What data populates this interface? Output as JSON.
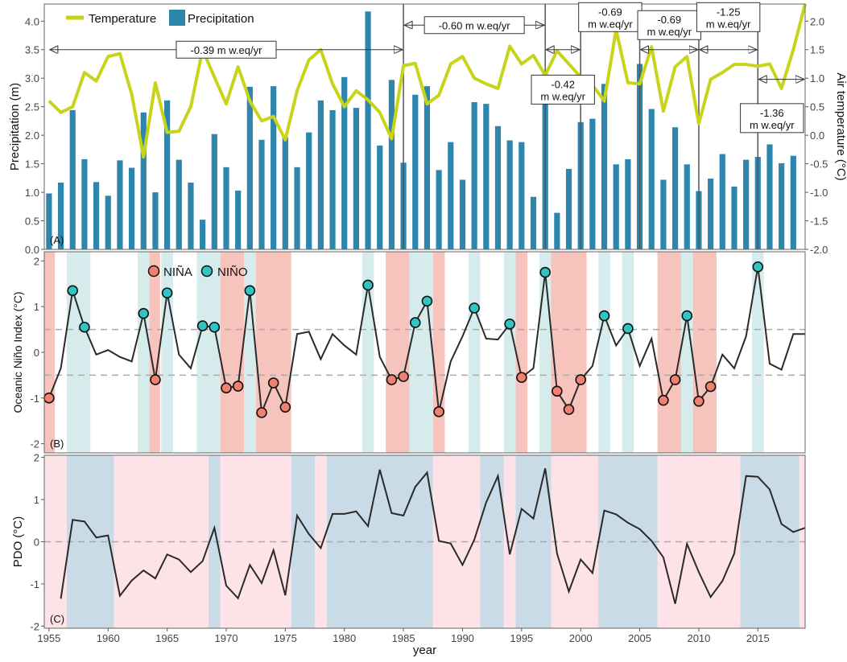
{
  "colors": {
    "bar": "#2f86ad",
    "temperature": "#c8d41a",
    "nina": "#f08070",
    "nino": "#30c4c4",
    "nina_band": "#f7c3bd",
    "nino_band": "#d6ecec",
    "pdo_warm": "#c9dbe6",
    "pdo_cool": "#fde3e7",
    "line": "#2a2a2a",
    "dash": "#aaaaaa",
    "axis": "#555555"
  },
  "chart_data": [
    {
      "id": "A",
      "type": "bar",
      "panel_label": "(A)",
      "ylabel": "Precipitation (m)",
      "y2label": "Air temperature (°C)",
      "ylim": [
        0,
        4.3
      ],
      "y2lim": [
        -2.0,
        2.3
      ],
      "yticks": [
        "0.0",
        "0.5",
        "1.0",
        "1.5",
        "2.0",
        "2.5",
        "3.0",
        "3.5",
        "4.0"
      ],
      "y2ticks": [
        "-2.0",
        "-1.5",
        "-1.0",
        "-0.5",
        "0.0",
        "0.5",
        "1.0",
        "1.5",
        "2.0"
      ],
      "legend": {
        "position": "top-left",
        "temperature_label": "Temperature",
        "precipitation_label": "Precipitation"
      },
      "precip_years": [
        1955,
        1956,
        1957,
        1958,
        1959,
        1960,
        1961,
        1962,
        1963,
        1964,
        1965,
        1966,
        1967,
        1968,
        1969,
        1970,
        1971,
        1972,
        1973,
        1974,
        1975,
        1976,
        1977,
        1978,
        1979,
        1980,
        1981,
        1982,
        1983,
        1984,
        1985,
        1986,
        1987,
        1988,
        1989,
        1990,
        1991,
        1992,
        1993,
        1994,
        1995,
        1996,
        1997,
        1998,
        1999,
        2000,
        2001,
        2002,
        2003,
        2004,
        2005,
        2006,
        2007,
        2008,
        2009,
        2010,
        2011,
        2012,
        2013,
        2014,
        2015,
        2016,
        2017,
        2018
      ],
      "precipitation": [
        0.98,
        1.17,
        2.44,
        1.58,
        1.18,
        0.94,
        1.56,
        1.43,
        2.4,
        1.0,
        2.61,
        1.57,
        1.17,
        0.52,
        2.02,
        1.44,
        1.03,
        2.85,
        1.92,
        2.86,
        1.96,
        1.44,
        2.05,
        2.61,
        2.44,
        3.02,
        2.48,
        4.17,
        1.82,
        2.97,
        1.52,
        2.71,
        2.86,
        1.39,
        1.88,
        1.22,
        2.58,
        2.55,
        2.16,
        1.91,
        1.88,
        0.92,
        3.07,
        0.64,
        1.41,
        2.23,
        2.29,
        2.9,
        1.49,
        1.58,
        3.25,
        2.46,
        1.22,
        2.14,
        1.49,
        1.02,
        1.24,
        1.67,
        1.1,
        1.57,
        1.62,
        1.84,
        1.51,
        1.64
      ],
      "temp_years": [
        1955,
        1956,
        1957,
        1958,
        1959,
        1960,
        1961,
        1962,
        1963,
        1964,
        1965,
        1966,
        1967,
        1968,
        1969,
        1970,
        1971,
        1972,
        1973,
        1974,
        1975,
        1976,
        1977,
        1978,
        1979,
        1980,
        1981,
        1982,
        1983,
        1984,
        1985,
        1986,
        1987,
        1988,
        1989,
        1990,
        1991,
        1992,
        1993,
        1994,
        1995,
        1996,
        1997,
        1998,
        1999,
        2000,
        2001,
        2002,
        2003,
        2004,
        2005,
        2006,
        2007,
        2008,
        2009,
        2010,
        2011,
        2012,
        2013,
        2014,
        2015,
        2016,
        2017,
        2018,
        2019
      ],
      "temperature": [
        0.6,
        0.4,
        0.5,
        1.1,
        0.95,
        1.38,
        1.43,
        0.72,
        -0.38,
        0.92,
        0.05,
        0.07,
        0.5,
        1.5,
        1.02,
        0.55,
        1.2,
        0.6,
        0.25,
        0.33,
        -0.08,
        0.78,
        1.32,
        1.5,
        0.9,
        0.5,
        0.78,
        0.62,
        0.4,
        -0.06,
        1.22,
        1.26,
        0.55,
        0.7,
        1.25,
        1.38,
        1.0,
        0.9,
        0.82,
        1.56,
        1.25,
        1.4,
        1.05,
        1.48,
        1.25,
        1.02,
        0.88,
        0.6,
        1.85,
        0.92,
        0.9,
        1.55,
        0.42,
        1.2,
        1.38,
        0.2,
        0.98,
        1.1,
        1.24,
        1.24,
        1.21,
        1.25,
        0.82,
        1.5,
        2.3
      ],
      "period_lines": [
        1985,
        1997,
        2000,
        2005,
        2010,
        2015
      ],
      "annotations": [
        {
          "text": "-0.39 m w.eq/yr",
          "from": 1955,
          "to": 1985,
          "arrow_at": 3.5,
          "box_at": 3.5
        },
        {
          "text": "-0.60 m w.eq/yr",
          "from": 1985,
          "to": 1997,
          "arrow_at": 3.93,
          "box_at": 3.93
        },
        {
          "text": "-0.42\nm w.eq/yr",
          "from": 1997,
          "to": 2000,
          "arrow_at": 3.5,
          "box_at": 2.8
        },
        {
          "text": "-0.69\nm w.eq/yr",
          "from": 2000,
          "to": 2005,
          "arrow_at": 3.93,
          "box_at": 4.07
        },
        {
          "text": "-0.69\nm w.eq/yr",
          "from": 2005,
          "to": 2010,
          "arrow_at": 3.5,
          "box_at": 3.93
        },
        {
          "text": "-1.25\nm w.eq/yr",
          "from": 2010,
          "to": 2015,
          "arrow_at": 3.5,
          "box_at": 4.07
        },
        {
          "text": "-1.36\nm w.eq/yr",
          "from": 2015,
          "to": 2019,
          "arrow_at": 2.98,
          "box_at": 2.3
        }
      ]
    },
    {
      "id": "B",
      "type": "line",
      "panel_label": "(B)",
      "ylabel": "Oceanic Niño Index (°C)",
      "ylim": [
        -2.2,
        2.2
      ],
      "yticks": [
        "-2",
        "-1",
        "0",
        "1",
        "2"
      ],
      "thresholds": [
        0.5,
        -0.5
      ],
      "legend": {
        "position": "top-left",
        "nina_label": "NIÑA",
        "nino_label": "NIÑO"
      },
      "years": [
        1955,
        1956,
        1957,
        1958,
        1959,
        1960,
        1961,
        1962,
        1963,
        1964,
        1965,
        1966,
        1967,
        1968,
        1969,
        1970,
        1971,
        1972,
        1973,
        1974,
        1975,
        1976,
        1977,
        1978,
        1979,
        1980,
        1981,
        1982,
        1983,
        1984,
        1985,
        1986,
        1987,
        1988,
        1989,
        1990,
        1991,
        1992,
        1993,
        1994,
        1995,
        1996,
        1997,
        1998,
        1999,
        2000,
        2001,
        2002,
        2003,
        2004,
        2005,
        2006,
        2007,
        2008,
        2009,
        2010,
        2011,
        2012,
        2013,
        2014,
        2015,
        2016,
        2017,
        2018,
        2019
      ],
      "oni": [
        -1.0,
        -0.35,
        1.35,
        0.55,
        -0.05,
        0.05,
        -0.1,
        -0.2,
        0.85,
        -0.6,
        1.3,
        -0.05,
        -0.35,
        0.58,
        0.55,
        -0.78,
        -0.74,
        1.35,
        -1.32,
        -0.67,
        -1.2,
        0.4,
        0.45,
        -0.15,
        0.4,
        0.15,
        -0.05,
        1.47,
        -0.1,
        -0.6,
        -0.53,
        0.65,
        1.12,
        -1.3,
        -0.2,
        0.35,
        0.97,
        0.3,
        0.28,
        0.62,
        -0.55,
        -0.35,
        1.75,
        -0.85,
        -1.25,
        -0.6,
        -0.3,
        0.8,
        0.15,
        0.52,
        -0.3,
        0.3,
        -1.05,
        -0.6,
        0.8,
        -1.07,
        -0.75,
        -0.05,
        -0.35,
        0.35,
        1.87,
        -0.25,
        -0.38,
        0.4,
        0.4
      ],
      "nino_points": [
        1957,
        1958,
        1963,
        1965,
        1968,
        1969,
        1972,
        1982,
        1986,
        1987,
        1991,
        1994,
        1997,
        2002,
        2004,
        2009,
        2015
      ],
      "nina_points": [
        1955,
        1964,
        1970,
        1971,
        1973,
        1974,
        1975,
        1984,
        1985,
        1988,
        1995,
        1998,
        1999,
        2000,
        2007,
        2008,
        2010,
        2011
      ],
      "nina_bands": [
        [
          1954.6,
          1955.5
        ],
        [
          1963.4,
          1964.4
        ],
        [
          1969.5,
          1971.5
        ],
        [
          1972.5,
          1975.5
        ],
        [
          1983.5,
          1985.5
        ],
        [
          1987.5,
          1988.5
        ],
        [
          1994.5,
          1995.5
        ],
        [
          1997.5,
          1999.5
        ],
        [
          1999.5,
          2000.5
        ],
        [
          2006.5,
          2008.5
        ],
        [
          2009.5,
          2011.5
        ]
      ],
      "nino_bands": [
        [
          1956.5,
          1958.5
        ],
        [
          1962.5,
          1963.5
        ],
        [
          1964.5,
          1965.5
        ],
        [
          1967.5,
          1969.5
        ],
        [
          1971.5,
          1972.5
        ],
        [
          1981.5,
          1982.5
        ],
        [
          1985.5,
          1987.5
        ],
        [
          1990.5,
          1991.5
        ],
        [
          1993.5,
          1994.5
        ],
        [
          1996.5,
          1997.5
        ],
        [
          2001.5,
          2002.5
        ],
        [
          2003.5,
          2004.5
        ],
        [
          2008.5,
          2009.5
        ],
        [
          2014.5,
          2015.5
        ]
      ]
    },
    {
      "id": "C",
      "type": "line",
      "panel_label": "(C)",
      "ylabel": "PDO (°C)",
      "xlabel": "year",
      "ylim": [
        -2.05,
        2.05
      ],
      "yticks": [
        "-2",
        "-1",
        "0",
        "1",
        "2"
      ],
      "xticks": [
        "1955",
        "1960",
        "1965",
        "1970",
        "1975",
        "1980",
        "1985",
        "1990",
        "1995",
        "2000",
        "2005",
        "2010",
        "2015"
      ],
      "xlim": [
        1954.6,
        2019.0
      ],
      "years": [
        1956,
        1957,
        1958,
        1959,
        1960,
        1961,
        1962,
        1963,
        1964,
        1965,
        1966,
        1967,
        1968,
        1969,
        1970,
        1971,
        1972,
        1973,
        1974,
        1975,
        1976,
        1977,
        1978,
        1979,
        1980,
        1981,
        1982,
        1983,
        1984,
        1985,
        1986,
        1987,
        1988,
        1989,
        1990,
        1991,
        1992,
        1993,
        1994,
        1995,
        1996,
        1997,
        1998,
        1999,
        2000,
        2001,
        2002,
        2003,
        2004,
        2005,
        2006,
        2007,
        2008,
        2009,
        2010,
        2011,
        2012,
        2013,
        2014,
        2015,
        2016,
        2017,
        2018,
        2019
      ],
      "pdo": [
        -1.35,
        0.52,
        0.48,
        0.1,
        0.15,
        -1.28,
        -0.92,
        -0.68,
        -0.87,
        -0.3,
        -0.42,
        -0.72,
        -0.46,
        0.33,
        -1.04,
        -1.34,
        -0.55,
        -0.98,
        -0.2,
        -1.27,
        0.62,
        0.18,
        -0.15,
        0.66,
        0.66,
        0.72,
        0.37,
        1.71,
        0.68,
        0.62,
        1.3,
        1.64,
        0.02,
        -0.04,
        -0.55,
        0.05,
        0.93,
        1.56,
        -0.3,
        0.78,
        0.55,
        1.74,
        -0.28,
        -1.18,
        -0.42,
        -0.74,
        0.74,
        0.65,
        0.45,
        0.3,
        0.02,
        -0.37,
        -1.47,
        -0.05,
        -0.72,
        -1.31,
        -0.93,
        -0.28,
        1.56,
        1.54,
        1.24,
        0.42,
        0.23,
        0.33
      ],
      "warm_bands": [
        [
          1956.5,
          1960.5
        ],
        [
          1968.5,
          1969.5
        ],
        [
          1975.5,
          1977.5
        ],
        [
          1978.5,
          1987.5
        ],
        [
          1991.5,
          1993.5
        ],
        [
          1994.5,
          1997.5
        ],
        [
          2001.5,
          2006.5
        ],
        [
          2013.5,
          2018.5
        ]
      ],
      "cool_bands": [
        [
          1954.6,
          1956.5
        ],
        [
          1960.5,
          1968.5
        ],
        [
          1969.5,
          1975.5
        ],
        [
          1977.5,
          1978.5
        ],
        [
          1987.5,
          1991.5
        ],
        [
          1993.5,
          1994.5
        ],
        [
          1997.5,
          2001.5
        ],
        [
          2006.5,
          2013.5
        ],
        [
          2018.5,
          2019.0
        ]
      ]
    }
  ]
}
